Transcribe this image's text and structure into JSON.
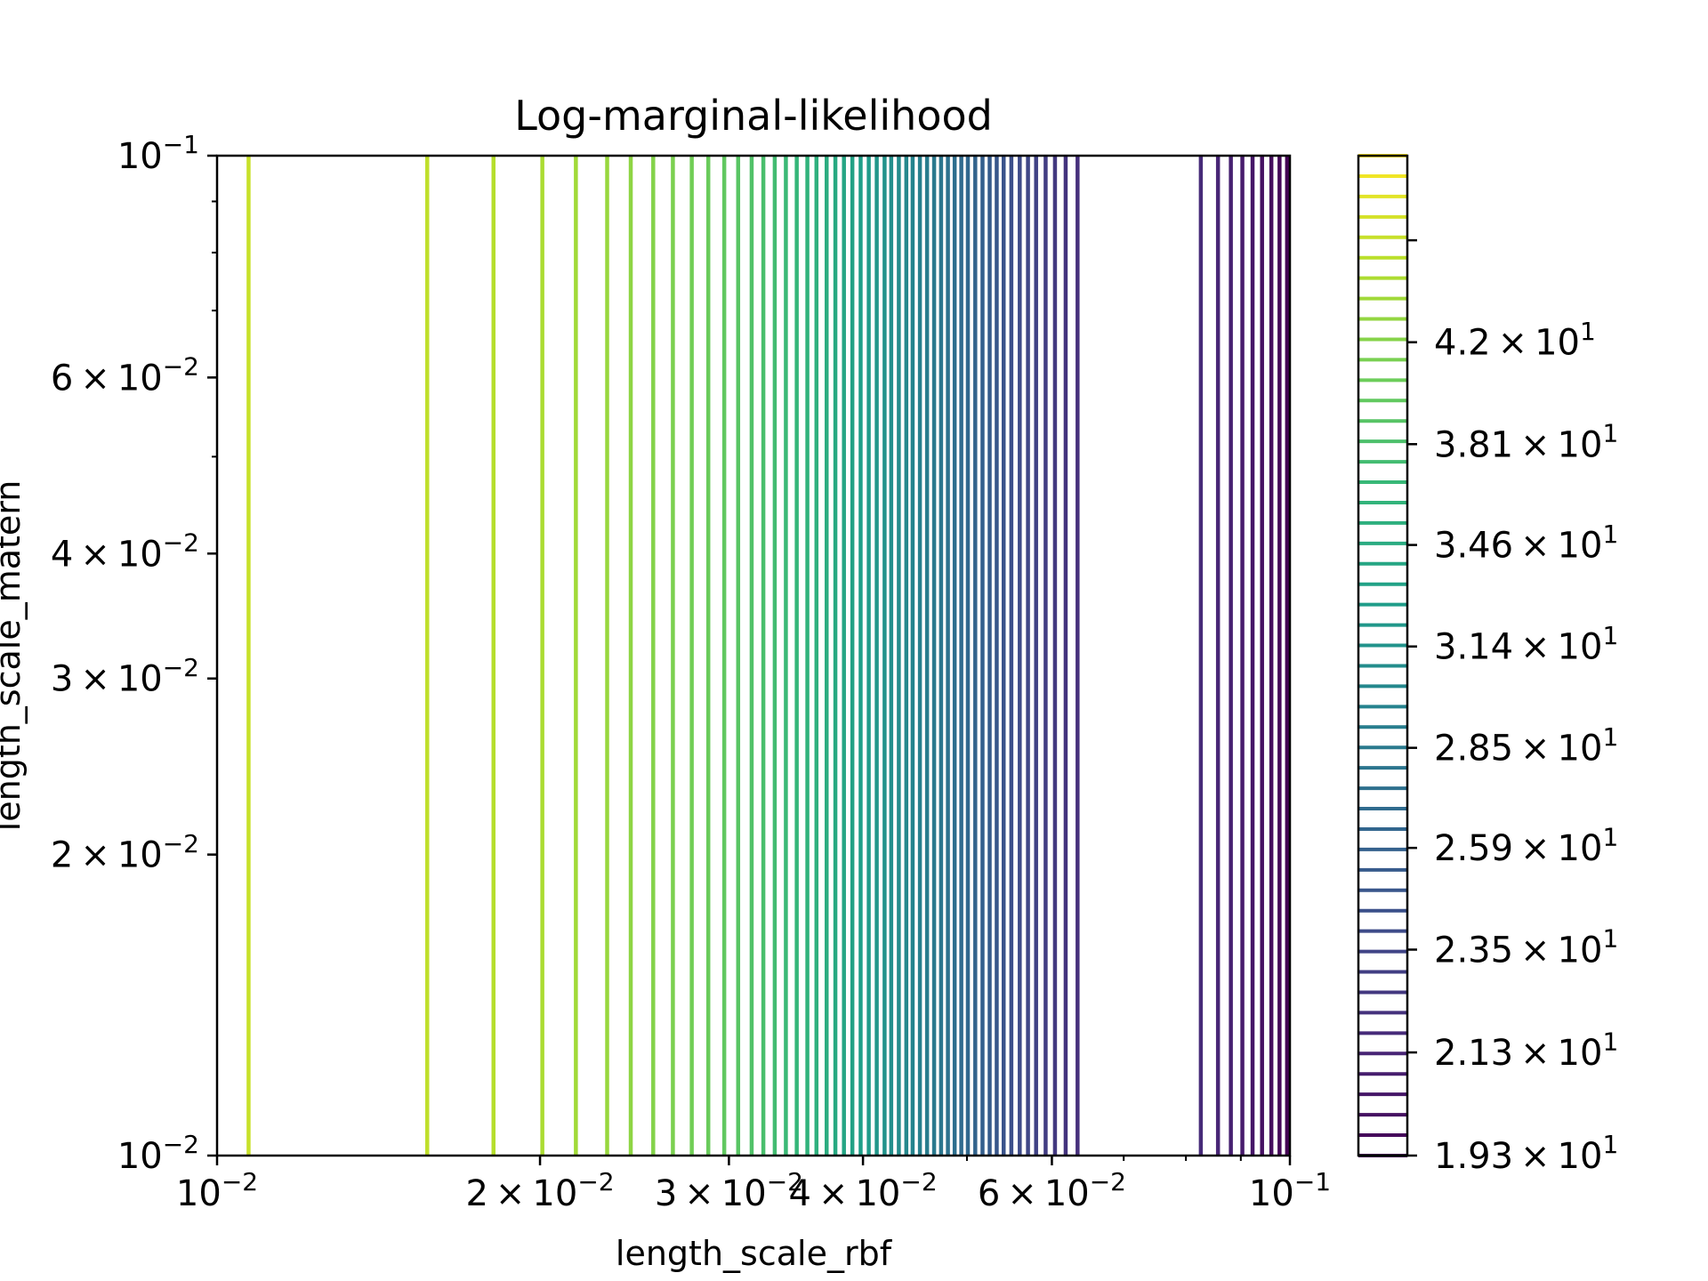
{
  "chart_data": {
    "type": "contour",
    "title": "Log-marginal-likelihood",
    "xlabel": "length_scale_rbf",
    "ylabel": "length_scale_matern",
    "xscale": "log",
    "yscale": "log",
    "xlim": [
      0.01,
      0.1
    ],
    "ylim": [
      0.01,
      0.1
    ],
    "x_ticks": [
      {
        "value": 0.01,
        "base": "10",
        "exp": "−2"
      },
      {
        "value": 0.02,
        "mant": "2",
        "exp": "−2"
      },
      {
        "value": 0.03,
        "mant": "3",
        "exp": "−2"
      },
      {
        "value": 0.04,
        "mant": "4",
        "exp": "−2"
      },
      {
        "value": 0.06,
        "mant": "6",
        "exp": "−2"
      },
      {
        "value": 0.1,
        "base": "10",
        "exp": "−1"
      }
    ],
    "y_ticks": [
      {
        "value": 0.01,
        "base": "10",
        "exp": "−2"
      },
      {
        "value": 0.02,
        "mant": "2",
        "exp": "−2"
      },
      {
        "value": 0.03,
        "mant": "3",
        "exp": "−2"
      },
      {
        "value": 0.04,
        "mant": "4",
        "exp": "−2"
      },
      {
        "value": 0.06,
        "mant": "6",
        "exp": "−2"
      },
      {
        "value": 0.1,
        "base": "10",
        "exp": "−1"
      }
    ],
    "colorbar": {
      "scale": "log",
      "range": [
        19.3,
        50.2
      ],
      "levels": 50,
      "colormap": "viridis",
      "ticks": [
        {
          "value": 19.3,
          "mant": "1.93",
          "exp": "1"
        },
        {
          "value": 21.3,
          "mant": "2.13",
          "exp": "1"
        },
        {
          "value": 23.5,
          "mant": "2.35",
          "exp": "1"
        },
        {
          "value": 25.9,
          "mant": "2.59",
          "exp": "1"
        },
        {
          "value": 28.5,
          "mant": "2.85",
          "exp": "1"
        },
        {
          "value": 31.4,
          "mant": "3.14",
          "exp": "1"
        },
        {
          "value": 34.6,
          "mant": "3.46",
          "exp": "1"
        },
        {
          "value": 38.1,
          "mant": "3.81",
          "exp": "1"
        },
        {
          "value": 42.0,
          "mant": "4.2",
          "exp": "1"
        }
      ],
      "unlabeled_ticks": [
        46.3
      ]
    },
    "contour_lines_x": [
      0.0107,
      0.0157,
      0.0181,
      0.0201,
      0.0216,
      0.0231,
      0.0243,
      0.0255,
      0.0266,
      0.0277,
      0.0287,
      0.0297,
      0.0306,
      0.0315,
      0.0323,
      0.0331,
      0.0339,
      0.0347,
      0.0355,
      0.0362,
      0.037,
      0.0377,
      0.0384,
      0.0391,
      0.0398,
      0.0405,
      0.0412,
      0.0419,
      0.0425,
      0.0432,
      0.0439,
      0.0445,
      0.0452,
      0.0459,
      0.0466,
      0.0473,
      0.048,
      0.0487,
      0.0494,
      0.0501,
      0.0509,
      0.0517,
      0.0525,
      0.0533,
      0.0541,
      0.055,
      0.056,
      0.057,
      0.058,
      0.0592,
      0.0604,
      0.0618,
      0.0634,
      0.0826,
      0.0857,
      0.0881,
      0.0903,
      0.0923,
      0.0942,
      0.0961,
      0.0978,
      0.0994
    ]
  }
}
